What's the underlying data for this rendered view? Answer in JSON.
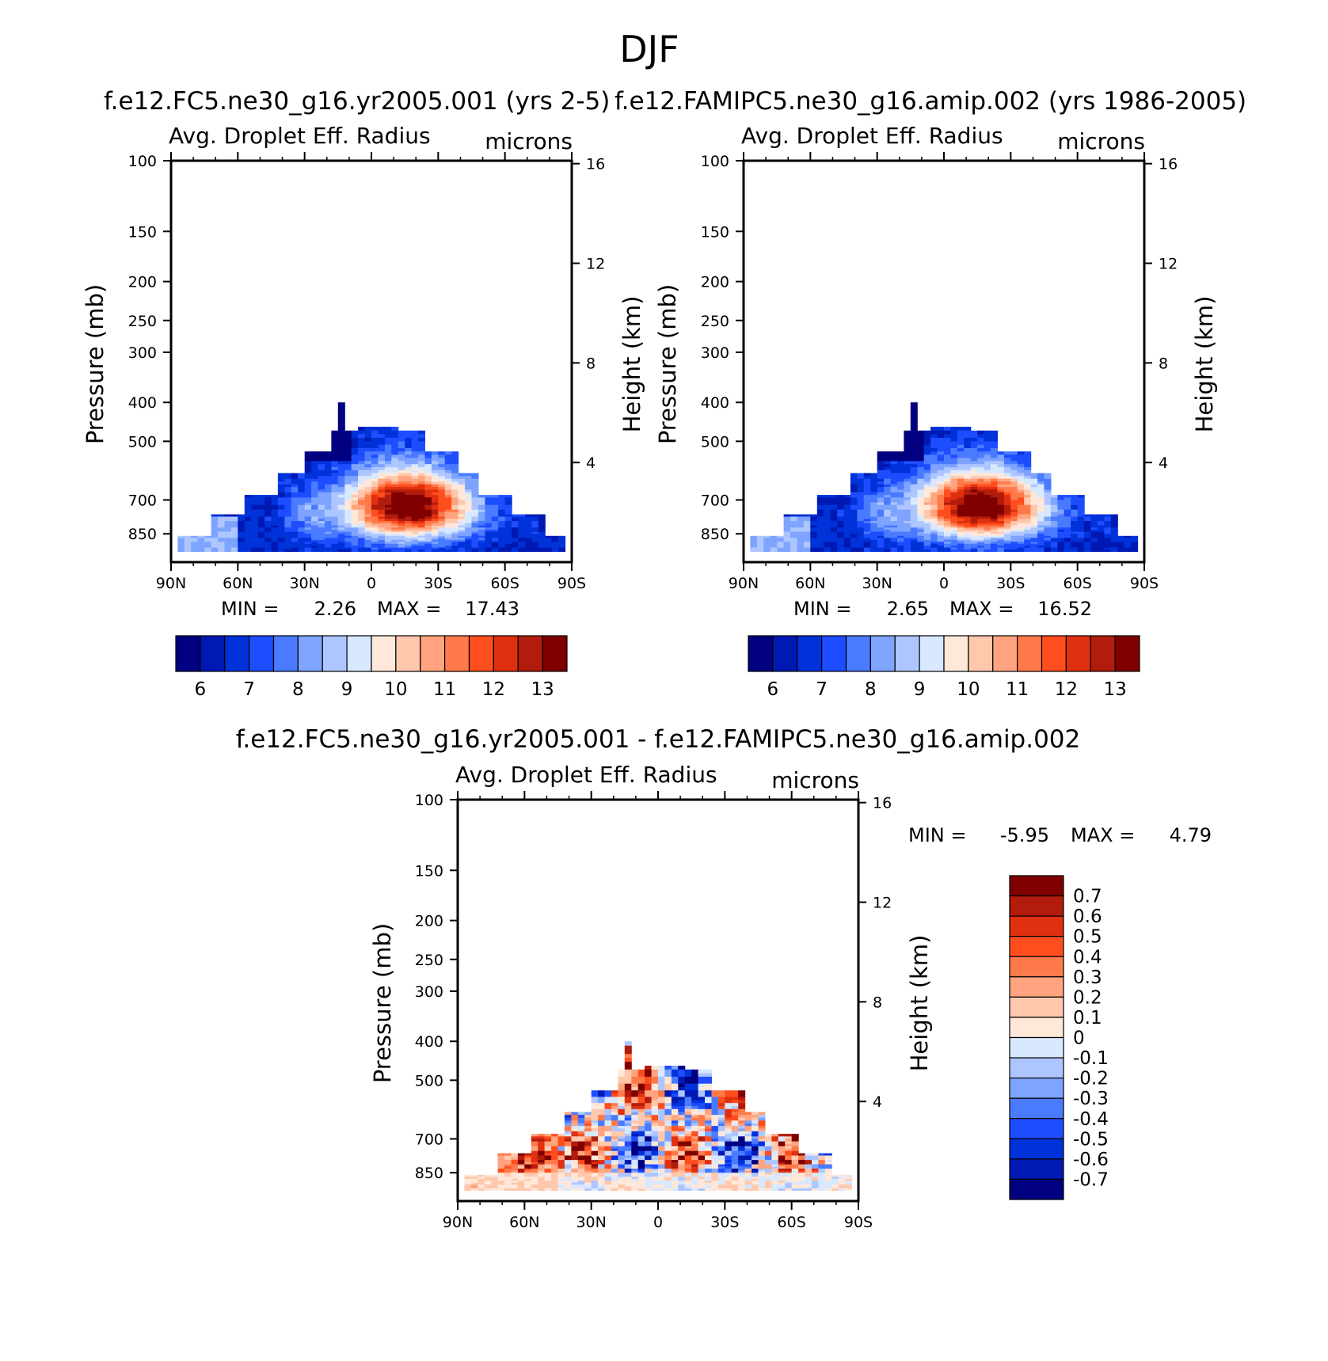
{
  "figure_title": "DJF",
  "panels": [
    {
      "title": "f.e12.FC5.ne30_g16.yr2005.001 (yrs 2-5)",
      "left_string": "Avg. Droplet Eff. Radius",
      "right_string": "microns",
      "y_label": "Pressure (mb)",
      "y2_label": "Height (km)",
      "min_label": "MIN =",
      "min_value": "2.26",
      "max_label": "MAX =",
      "max_value": "17.43",
      "x_ticks": [
        "90N",
        "60N",
        "30N",
        "0",
        "30S",
        "60S",
        "90S"
      ],
      "y_ticks": [
        "100",
        "150",
        "200",
        "250",
        "300",
        "400",
        "500",
        "700",
        "850"
      ],
      "y2_ticks": [
        "16",
        "12",
        "8",
        "4"
      ],
      "colorbar_ticks": [
        "6",
        "7",
        "8",
        "9",
        "10",
        "11",
        "12",
        "13"
      ]
    },
    {
      "title": "f.e12.FAMIPC5.ne30_g16.amip.002 (yrs 1986-2005)",
      "left_string": "Avg. Droplet Eff. Radius",
      "right_string": "microns",
      "y_label": "Pressure (mb)",
      "y2_label": "Height (km)",
      "min_label": "MIN =",
      "min_value": "2.65",
      "max_label": "MAX =",
      "max_value": "16.52",
      "x_ticks": [
        "90N",
        "60N",
        "30N",
        "0",
        "30S",
        "60S",
        "90S"
      ],
      "y_ticks": [
        "100",
        "150",
        "200",
        "250",
        "300",
        "400",
        "500",
        "700",
        "850"
      ],
      "y2_ticks": [
        "16",
        "12",
        "8",
        "4"
      ],
      "colorbar_ticks": [
        "6",
        "7",
        "8",
        "9",
        "10",
        "11",
        "12",
        "13"
      ]
    },
    {
      "title": "f.e12.FC5.ne30_g16.yr2005.001 - f.e12.FAMIPC5.ne30_g16.amip.002",
      "left_string": "Avg. Droplet Eff. Radius",
      "right_string": "microns",
      "y_label": "Pressure (mb)",
      "y2_label": "Height (km)",
      "min_label": "MIN =",
      "min_value": "-5.95",
      "max_label": "MAX =",
      "max_value": "4.79",
      "x_ticks": [
        "90N",
        "60N",
        "30N",
        "0",
        "30S",
        "60S",
        "90S"
      ],
      "y_ticks": [
        "100",
        "150",
        "200",
        "250",
        "300",
        "400",
        "500",
        "700",
        "850"
      ],
      "y2_ticks": [
        "16",
        "12",
        "8",
        "4"
      ],
      "colorbar_ticks": [
        "0.7",
        "0.6",
        "0.5",
        "0.4",
        "0.3",
        "0.2",
        "0.1",
        "0",
        "-0.1",
        "-0.2",
        "-0.3",
        "-0.4",
        "-0.5",
        "-0.6",
        "-0.7"
      ]
    }
  ],
  "palettes": {
    "mean": [
      "#000080",
      "#0019b3",
      "#0032d9",
      "#1e4dff",
      "#4a7bff",
      "#7ea4ff",
      "#aec6ff",
      "#d8e8ff",
      "#ffe8d9",
      "#ffc8ad",
      "#ffa47e",
      "#ff7a4a",
      "#ff4e1e",
      "#e03010",
      "#b21c0c",
      "#800000"
    ],
    "diff": [
      "#800000",
      "#b21c0c",
      "#e03010",
      "#ff4e1e",
      "#ff7a4a",
      "#ffa47e",
      "#ffc8ad",
      "#ffe8d9",
      "#d8e8ff",
      "#aec6ff",
      "#7ea4ff",
      "#4a7bff",
      "#1e4dff",
      "#0032d9",
      "#0019b3",
      "#000080"
    ]
  },
  "chart_data": [
    {
      "type": "heatmap",
      "title": "f.e12.FC5.ne30_g16.yr2005.001 (yrs 2-5)",
      "variable": "Avg. Droplet Eff. Radius",
      "units": "microns",
      "x": {
        "label": "",
        "range": [
          -90,
          90
        ],
        "tick_values": [
          90,
          60,
          30,
          0,
          -30,
          -60,
          -90
        ],
        "tick_labels": [
          "90N",
          "60N",
          "30N",
          "0",
          "30S",
          "60S",
          "90S"
        ]
      },
      "y": {
        "label": "Pressure (mb)",
        "scale": "log",
        "reversed": true,
        "range": [
          100,
          1000
        ],
        "tick_values": [
          100,
          150,
          200,
          250,
          300,
          400,
          500,
          700,
          850
        ]
      },
      "y2": {
        "label": "Height (km)",
        "tick_values": [
          16,
          12,
          8,
          4
        ]
      },
      "contour_levels": [
        5.5,
        6,
        6.5,
        7,
        7.5,
        8,
        8.5,
        9,
        9.5,
        10,
        10.5,
        11,
        11.5,
        12,
        12.5,
        13,
        13.5
      ],
      "min": 2.26,
      "max": 17.43,
      "features": {
        "max_center_lat": -15,
        "max_center_p": 700,
        "top_p": 400,
        "poleward_extent": [
          85,
          -85
        ]
      }
    },
    {
      "type": "heatmap",
      "title": "f.e12.FAMIPC5.ne30_g16.amip.002 (yrs 1986-2005)",
      "variable": "Avg. Droplet Eff. Radius",
      "units": "microns",
      "x": {
        "label": "",
        "range": [
          -90,
          90
        ],
        "tick_values": [
          90,
          60,
          30,
          0,
          -30,
          -60,
          -90
        ],
        "tick_labels": [
          "90N",
          "60N",
          "30N",
          "0",
          "30S",
          "60S",
          "90S"
        ]
      },
      "y": {
        "label": "Pressure (mb)",
        "scale": "log",
        "reversed": true,
        "range": [
          100,
          1000
        ],
        "tick_values": [
          100,
          150,
          200,
          250,
          300,
          400,
          500,
          700,
          850
        ]
      },
      "y2": {
        "label": "Height (km)",
        "tick_values": [
          16,
          12,
          8,
          4
        ]
      },
      "contour_levels": [
        5.5,
        6,
        6.5,
        7,
        7.5,
        8,
        8.5,
        9,
        9.5,
        10,
        10.5,
        11,
        11.5,
        12,
        12.5,
        13,
        13.5
      ],
      "min": 2.65,
      "max": 16.52,
      "features": {
        "max_center_lat": -15,
        "max_center_p": 700,
        "top_p": 400,
        "poleward_extent": [
          85,
          -85
        ]
      }
    },
    {
      "type": "heatmap",
      "title": "f.e12.FC5.ne30_g16.yr2005.001 - f.e12.FAMIPC5.ne30_g16.amip.002",
      "variable": "Avg. Droplet Eff. Radius",
      "units": "microns",
      "x": {
        "label": "",
        "range": [
          -90,
          90
        ],
        "tick_values": [
          90,
          60,
          30,
          0,
          -30,
          -60,
          -90
        ],
        "tick_labels": [
          "90N",
          "60N",
          "30N",
          "0",
          "30S",
          "60S",
          "90S"
        ]
      },
      "y": {
        "label": "Pressure (mb)",
        "scale": "log",
        "reversed": true,
        "range": [
          100,
          1000
        ],
        "tick_values": [
          100,
          150,
          200,
          250,
          300,
          400,
          500,
          700,
          850
        ]
      },
      "y2": {
        "label": "Height (km)",
        "tick_values": [
          16,
          12,
          8,
          4
        ]
      },
      "contour_levels": [
        0.7,
        0.6,
        0.5,
        0.4,
        0.3,
        0.2,
        0.1,
        0,
        -0.1,
        -0.2,
        -0.3,
        -0.4,
        -0.5,
        -0.6,
        -0.7
      ],
      "min": -5.95,
      "max": 4.79
    }
  ]
}
